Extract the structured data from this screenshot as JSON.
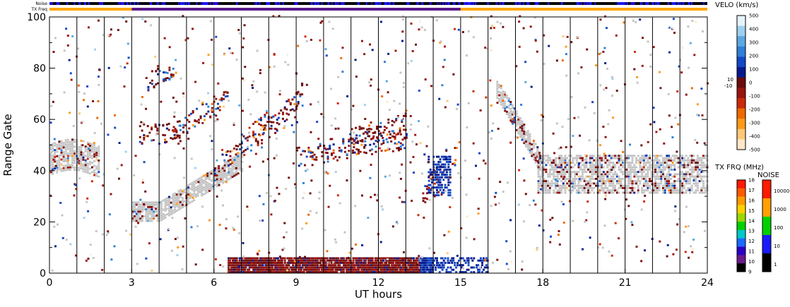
{
  "chart_data": {
    "type": "heatmap",
    "title": "",
    "xlabel": "UT hours",
    "ylabel": "Range Gate",
    "xlim": [
      0,
      24
    ],
    "ylim": [
      0,
      100
    ],
    "x_ticks": [
      "0",
      "3",
      "6",
      "9",
      "12",
      "15",
      "18",
      "21",
      "24"
    ],
    "y_ticks": [
      "0",
      "20",
      "40",
      "60",
      "80",
      "100"
    ],
    "x_tick_values": [
      0,
      3,
      6,
      9,
      12,
      15,
      18,
      21,
      24
    ],
    "y_tick_values": [
      0,
      20,
      40,
      60,
      80,
      100
    ],
    "vertical_lines_ut": [
      1,
      2,
      3,
      4,
      5,
      6,
      7,
      8,
      9,
      10,
      11,
      12,
      13,
      14,
      15,
      16,
      17,
      18,
      19,
      20,
      21,
      22,
      23,
      24
    ],
    "top_strips": {
      "noise_label": "Noise",
      "txfreq_label": "TX Freq",
      "txfreq_segments": [
        {
          "start": 0,
          "end": 3,
          "color": "#ffa500"
        },
        {
          "start": 3,
          "end": 15,
          "color": "#5a1a8a"
        },
        {
          "start": 15,
          "end": 24,
          "color": "#ffa500"
        }
      ]
    },
    "colorbars": {
      "velocity": {
        "title": "VELO (km/s)",
        "labels": [
          "500",
          "400",
          "300",
          "200",
          "100",
          "0",
          "-100",
          "-200",
          "-300",
          "-400",
          "-500"
        ],
        "mid_labels": [
          "10",
          "-10"
        ],
        "colors": [
          "#e6f3fb",
          "#9ed0ee",
          "#5aa8e0",
          "#2e7fd6",
          "#1448c4",
          "#061a8e",
          "#6a0c0c",
          "#9a1410",
          "#cc2a08",
          "#ee6a00",
          "#ff9a18",
          "#ffc878",
          "#ffe8c8"
        ]
      },
      "txfreq": {
        "title": "TX FRQ (MHz)",
        "labels": [
          "18",
          "17",
          "16",
          "15",
          "14",
          "13",
          "12",
          "11",
          "10",
          "9"
        ],
        "colors": [
          "#ff1a00",
          "#ff5a00",
          "#ff9a00",
          "#ffd000",
          "#9ad800",
          "#00d000",
          "#00c8c8",
          "#1a6aff",
          "#2a00c8",
          "#6a1a8a",
          "#000000"
        ]
      },
      "noise": {
        "title": "NOISE",
        "labels": [
          "10000",
          "1000",
          "100",
          "10",
          "1"
        ],
        "colors": [
          "#ff1a00",
          "#ffa000",
          "#00d000",
          "#1a1aff",
          "#000000"
        ]
      }
    },
    "features": [
      {
        "desc": "ground scatter band",
        "ut": [
          0,
          1.8
        ],
        "gate": [
          38,
          52
        ],
        "type": "ground"
      },
      {
        "desc": "ground scatter arc",
        "ut": [
          3,
          7
        ],
        "gate": [
          20,
          45
        ],
        "type": "ground"
      },
      {
        "desc": "near-range ionospheric scatter",
        "ut": [
          6.5,
          14
        ],
        "gate": [
          0,
          6
        ],
        "type": "iono"
      },
      {
        "desc": "ground scatter band",
        "ut": [
          16.5,
          24
        ],
        "gate": [
          30,
          46
        ],
        "type": "ground"
      }
    ]
  }
}
